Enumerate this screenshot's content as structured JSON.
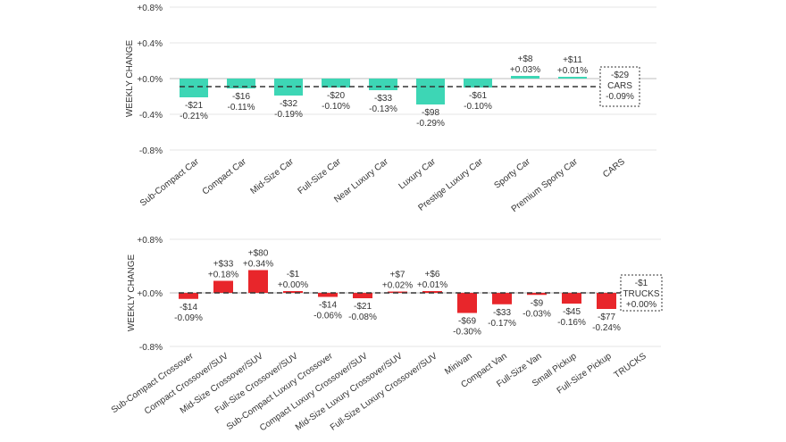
{
  "chart_data": [
    {
      "type": "bar",
      "name": "cars",
      "title": "",
      "xlabel": "",
      "ylabel": "WEEKLY CHANGE",
      "ylim": [
        -0.8,
        0.8
      ],
      "yticks": [
        0.8,
        0.4,
        0.0,
        -0.4,
        -0.8
      ],
      "ytick_labels": [
        "+0.8%",
        "+0.4%",
        "+0.0%",
        "-0.4%",
        "-0.8%"
      ],
      "grid": true,
      "bar_color": "#3dd6b5",
      "categories": [
        "Sub-Compact Car",
        "Compact Car",
        "Mid-Size Car",
        "Full-Size Car",
        "Near Luxury Car",
        "Luxury Car",
        "Prestige Luxury Car",
        "Sporty Car",
        "Premium Sporty Car",
        "CARS"
      ],
      "values": [
        -0.21,
        -0.11,
        -0.19,
        -0.1,
        -0.13,
        -0.29,
        -0.1,
        0.03,
        0.01,
        null
      ],
      "dollar_labels": [
        "-$21",
        "-$16",
        "-$32",
        "-$20",
        "-$33",
        "-$98",
        "-$61",
        "+$8",
        "+$11",
        null
      ],
      "percent_labels": [
        "-0.21%",
        "-0.11%",
        "-0.19%",
        "-0.10%",
        "-0.13%",
        "-0.29%",
        "-0.10%",
        "+0.03%",
        "+0.01%",
        null
      ],
      "average": {
        "value": -0.09,
        "dollar": "-$29",
        "label": "CARS",
        "percent": "-0.09%"
      }
    },
    {
      "type": "bar",
      "name": "trucks",
      "title": "",
      "xlabel": "",
      "ylabel": "WEEKLY CHANGE",
      "ylim": [
        -0.8,
        0.8
      ],
      "yticks": [
        0.8,
        0.0,
        -0.8
      ],
      "ytick_labels": [
        "+0.8%",
        "+0.0%",
        "-0.8%"
      ],
      "grid": true,
      "bar_color": "#e8262b",
      "categories": [
        "Sub-Compact Crossover",
        "Compact Crossover/SUV",
        "Mid-Size Crossover/SUV",
        "Full-Size Crossover/SUV",
        "Sub-Compact Luxury Crossover",
        "Compact Luxury Crossover/SUV",
        "Mid-Size Luxury Crossover/SUV",
        "Full-Size Luxury Crossover/SUV",
        "Minivan",
        "Compact Van",
        "Full-Size Van",
        "Small Pickup",
        "Full-Size Pickup",
        "TRUCKS"
      ],
      "values": [
        -0.09,
        0.18,
        0.34,
        0.0,
        -0.06,
        -0.08,
        0.02,
        0.01,
        -0.3,
        -0.17,
        -0.03,
        -0.16,
        -0.24,
        null
      ],
      "dollar_labels": [
        "-$14",
        "+$33",
        "+$80",
        "-$1",
        "-$14",
        "-$21",
        "+$7",
        "+$6",
        "-$69",
        "-$33",
        "-$9",
        "-$45",
        "-$77",
        null
      ],
      "percent_labels": [
        "-0.09%",
        "+0.18%",
        "+0.34%",
        "+0.00%",
        "-0.06%",
        "-0.08%",
        "+0.02%",
        "+0.01%",
        "-0.30%",
        "-0.17%",
        "-0.03%",
        "-0.16%",
        "-0.24%",
        null
      ],
      "average": {
        "value": 0.0,
        "dollar": "-$1",
        "label": "TRUCKS",
        "percent": "+0.00%"
      }
    }
  ]
}
